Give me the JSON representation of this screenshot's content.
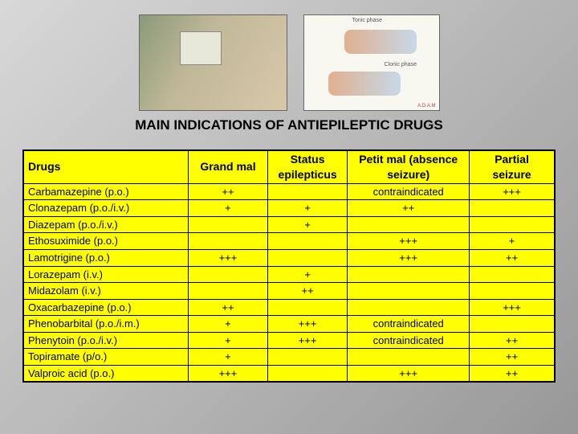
{
  "title": "MAIN INDICATIONS OF ANTIEPILEPTIC DRUGS",
  "images": {
    "tonic_label": "Tonic phase",
    "clonic_label": "Clonic phase",
    "adam": "A.D.A.M"
  },
  "table": {
    "headers": {
      "drugs": "Drugs",
      "grand_mal": "Grand mal",
      "status_epilepticus": "Status epilepticus",
      "petit_mal": "Petit mal (absence seizure)",
      "partial_seizure": "Partial seizure"
    },
    "rows": [
      {
        "drug": "Carbamazepine (p.o.)",
        "gm": "++",
        "se": "",
        "pm": "contraindicated",
        "ps": "+++"
      },
      {
        "drug": "Clonazepam (p.o./i.v.)",
        "gm": "+",
        "se": "+",
        "pm": "++",
        "ps": ""
      },
      {
        "drug": "Diazepam (p.o./i.v.)",
        "gm": "",
        "se": "+",
        "pm": "",
        "ps": ""
      },
      {
        "drug": "Ethosuximide (p.o.)",
        "gm": "",
        "se": "",
        "pm": "+++",
        "ps": "+"
      },
      {
        "drug": "Lamotrigine (p.o.)",
        "gm": "+++",
        "se": "",
        "pm": "+++",
        "ps": "++"
      },
      {
        "drug": "Lorazepam (i.v.)",
        "gm": "",
        "se": "+",
        "pm": "",
        "ps": ""
      },
      {
        "drug": "Midazolam (i.v.)",
        "gm": "",
        "se": "++",
        "pm": "",
        "ps": ""
      },
      {
        "drug": "Oxacarbazepine (p.o.)",
        "gm": "++",
        "se": "",
        "pm": "",
        "ps": "+++"
      },
      {
        "drug": "Phenobarbital (p.o./i.m.)",
        "gm": "+",
        "se": "+++",
        "pm": "contraindicated",
        "ps": ""
      },
      {
        "drug": "Phenytoin (p.o./i.v.)",
        "gm": "+",
        "se": "+++",
        "pm": "contraindicated",
        "ps": "++"
      },
      {
        "drug": "Topiramate (p/o.)",
        "gm": "+",
        "se": "",
        "pm": "",
        "ps": "++"
      },
      {
        "drug": "Valproic acid (p.o.)",
        "gm": "+++",
        "se": "",
        "pm": "+++",
        "ps": "++"
      }
    ]
  }
}
